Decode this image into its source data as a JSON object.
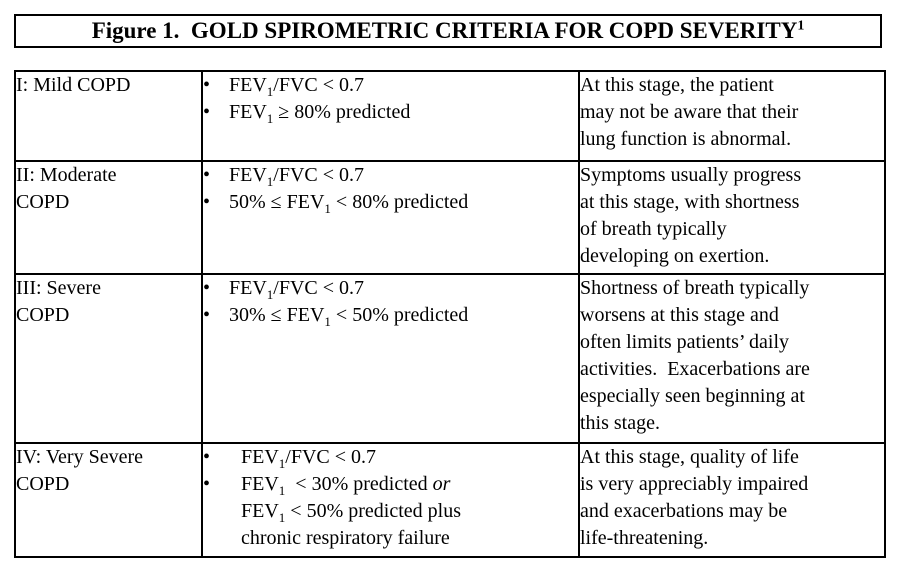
{
  "title": {
    "text": "Figure 1.  GOLD SPIROMETRIC CRITERIA FOR COPD SEVERITY",
    "superscript": "1"
  },
  "bullet_glyph": "•",
  "table": {
    "rows": [
      {
        "stage": "I: Mild COPD",
        "criteria": [
          {
            "indent": "normal",
            "segments": [
              {
                "t": "FEV"
              },
              {
                "t": "1",
                "s": "sub"
              },
              {
                "t": "/FVC < 0.7"
              }
            ]
          },
          {
            "indent": "normal",
            "segments": [
              {
                "t": "FEV"
              },
              {
                "t": "1",
                "s": "sub"
              },
              {
                "t": " ≥ 80% predicted"
              }
            ]
          }
        ],
        "description": "At this stage, the patient\nmay not be aware that their\nlung function is abnormal."
      },
      {
        "stage": "II: Moderate\nCOPD",
        "criteria": [
          {
            "indent": "normal",
            "segments": [
              {
                "t": "FEV"
              },
              {
                "t": "1",
                "s": "sub"
              },
              {
                "t": "/FVC < 0.7"
              }
            ]
          },
          {
            "indent": "normal",
            "segments": [
              {
                "t": "50% ≤ FEV"
              },
              {
                "t": "1",
                "s": "sub"
              },
              {
                "t": " < 80% predicted"
              }
            ]
          }
        ],
        "description": "Symptoms usually progress\nat this stage, with shortness\nof breath typically\ndeveloping on exertion."
      },
      {
        "stage": "III: Severe\nCOPD",
        "criteria": [
          {
            "indent": "normal",
            "segments": [
              {
                "t": "FEV"
              },
              {
                "t": "1",
                "s": "sub"
              },
              {
                "t": "/FVC < 0.7"
              }
            ]
          },
          {
            "indent": "normal",
            "segments": [
              {
                "t": "30% ≤ FEV"
              },
              {
                "t": "1",
                "s": "sub"
              },
              {
                "t": " < 50% predicted"
              }
            ]
          }
        ],
        "description": "Shortness of breath typically\nworsens at this stage and\noften limits patients’ daily\nactivities.  Exacerbations are\nespecially seen beginning at\nthis stage."
      },
      {
        "stage": "IV: Very Severe\nCOPD",
        "criteria": [
          {
            "indent": "wide",
            "segments": [
              {
                "t": "FEV"
              },
              {
                "t": "1",
                "s": "sub"
              },
              {
                "t": "/FVC < 0.7"
              }
            ]
          },
          {
            "indent": "wide",
            "segments": [
              {
                "t": "FEV"
              },
              {
                "t": "1",
                "s": "sub"
              },
              {
                "t": "  < 30% predicted "
              },
              {
                "t": "or",
                "s": "i"
              },
              {
                "s": "br"
              },
              {
                "t": "FEV"
              },
              {
                "t": "1",
                "s": "sub"
              },
              {
                "t": " < 50% predicted plus"
              },
              {
                "s": "br"
              },
              {
                "t": "chronic respiratory failure"
              }
            ]
          }
        ],
        "description": "At this stage, quality of life\nis very appreciably impaired\nand exacerbations may be\nlife-threatening."
      }
    ]
  }
}
